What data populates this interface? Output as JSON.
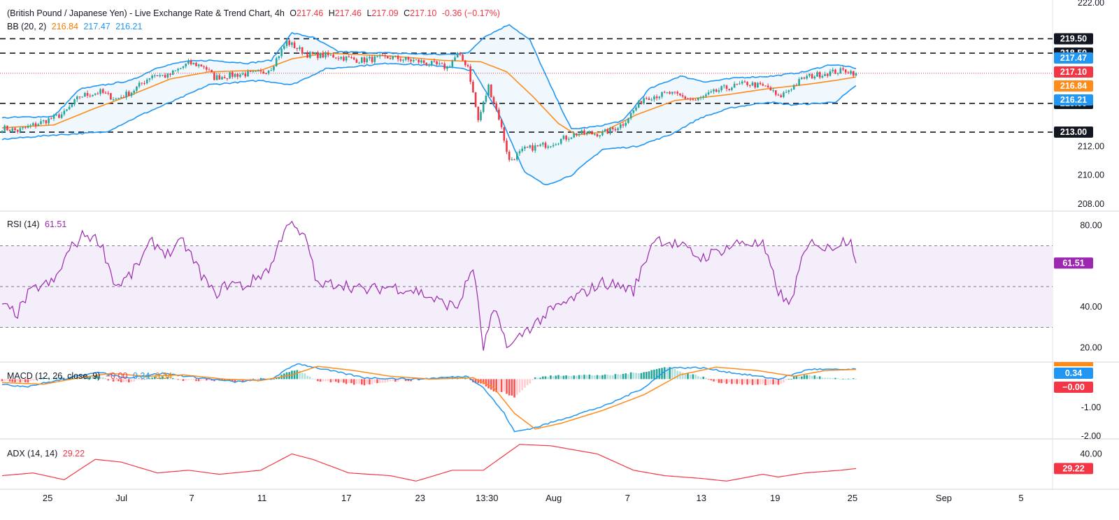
{
  "header": {
    "title": "(British Pound / Japanese Yen) - Live Exchange Rate & Trend Chart, 4h",
    "o_label": "O",
    "o_value": "217.46",
    "h_label": "H",
    "h_value": "217.46",
    "l_label": "L",
    "l_value": "217.09",
    "c_label": "C",
    "c_value": "217.10",
    "change": "-0.36 (−0.17%)"
  },
  "indicators": {
    "bb": {
      "label": "BB (20, 2)",
      "basis": "216.84",
      "upper": "217.47",
      "lower": "216.21"
    },
    "rsi": {
      "label": "RSI (14)",
      "value": "61.51"
    },
    "macd": {
      "label": "MACD (12, 26, close, 9)",
      "hist": "−0.00",
      "macd": "0.34",
      "signal": "0.34"
    },
    "adx": {
      "label": "ADX (14, 14)",
      "value": "29.22"
    }
  },
  "colors": {
    "up": "#26a69a",
    "down": "#f23645",
    "bb_basis": "#ff8c1a",
    "bb_band": "#2196f3",
    "bb_fill": "#e3f2fd",
    "rsi": "#9c27b0",
    "rsi_band": "#f3eefa",
    "macd": "#2196f3",
    "signal": "#ff8c1a",
    "adx": "#f23645",
    "level": "#131722"
  },
  "chart_data": [
    {
      "type": "candlestick",
      "name": "price",
      "y_ticks": [
        "222.00",
        "212.00",
        "210.00",
        "208.00"
      ],
      "ylim": [
        207.6,
        222.2
      ],
      "levels": [
        {
          "value": 219.5,
          "label": "219.50"
        },
        {
          "value": 218.5,
          "label": "218.50"
        },
        {
          "value": 215.0,
          "label": "215.00"
        },
        {
          "value": 213.0,
          "label": "213.00"
        }
      ],
      "price_labels": [
        {
          "value": 217.47,
          "label": "217.47",
          "kind": "bb_upper"
        },
        {
          "value": 217.1,
          "label": "217.10",
          "kind": "last"
        },
        {
          "value": 216.84,
          "label": "216.84",
          "kind": "bb_basis"
        },
        {
          "value": 216.21,
          "label": "216.21",
          "kind": "bb_lower"
        }
      ],
      "close_anchors": [
        [
          0,
          213.3
        ],
        [
          6,
          213.1
        ],
        [
          14,
          213.6
        ],
        [
          24,
          214.3
        ],
        [
          30,
          215.5
        ],
        [
          38,
          215.8
        ],
        [
          44,
          215.3
        ],
        [
          50,
          215.8
        ],
        [
          58,
          217.0
        ],
        [
          64,
          216.9
        ],
        [
          72,
          217.8
        ],
        [
          78,
          217.6
        ],
        [
          82,
          216.8
        ],
        [
          90,
          217.0
        ],
        [
          100,
          217.1
        ],
        [
          104,
          217.5
        ],
        [
          110,
          219.3
        ],
        [
          118,
          218.4
        ],
        [
          128,
          218.3
        ],
        [
          138,
          218.0
        ],
        [
          150,
          218.2
        ],
        [
          162,
          217.9
        ],
        [
          172,
          217.5
        ],
        [
          176,
          218.4
        ],
        [
          180,
          217.6
        ],
        [
          184,
          213.8
        ],
        [
          188,
          216.2
        ],
        [
          192,
          214.0
        ],
        [
          196,
          211.0
        ],
        [
          202,
          211.8
        ],
        [
          212,
          212.2
        ],
        [
          222,
          212.9
        ],
        [
          232,
          212.9
        ],
        [
          236,
          213.2
        ],
        [
          240,
          213.6
        ],
        [
          248,
          215.4
        ],
        [
          258,
          215.7
        ],
        [
          268,
          215.2
        ],
        [
          278,
          216.0
        ],
        [
          288,
          216.4
        ],
        [
          296,
          216.1
        ],
        [
          300,
          215.4
        ],
        [
          310,
          216.8
        ],
        [
          318,
          217.1
        ],
        [
          326,
          217.3
        ],
        [
          330,
          217.1
        ]
      ],
      "bb_upper_anchors": [
        [
          0,
          214.0
        ],
        [
          20,
          214.1
        ],
        [
          30,
          216.0
        ],
        [
          40,
          216.3
        ],
        [
          50,
          216.6
        ],
        [
          60,
          217.5
        ],
        [
          70,
          217.9
        ],
        [
          80,
          218.0
        ],
        [
          95,
          217.8
        ],
        [
          104,
          218.0
        ],
        [
          112,
          219.9
        ],
        [
          120,
          219.6
        ],
        [
          130,
          218.6
        ],
        [
          150,
          218.5
        ],
        [
          170,
          218.4
        ],
        [
          180,
          218.5
        ],
        [
          186,
          219.6
        ],
        [
          196,
          220.5
        ],
        [
          204,
          219.4
        ],
        [
          212,
          216.2
        ],
        [
          220,
          213.2
        ],
        [
          230,
          213.4
        ],
        [
          240,
          213.8
        ],
        [
          250,
          216.0
        ],
        [
          262,
          216.9
        ],
        [
          272,
          216.5
        ],
        [
          285,
          216.8
        ],
        [
          298,
          216.9
        ],
        [
          310,
          217.2
        ],
        [
          320,
          217.7
        ],
        [
          326,
          217.6
        ],
        [
          330,
          217.4
        ]
      ],
      "bb_basis_anchors": [
        [
          0,
          213.3
        ],
        [
          20,
          213.5
        ],
        [
          35,
          214.6
        ],
        [
          50,
          215.6
        ],
        [
          65,
          216.7
        ],
        [
          80,
          217.2
        ],
        [
          100,
          217.3
        ],
        [
          112,
          218.1
        ],
        [
          125,
          218.5
        ],
        [
          150,
          218.3
        ],
        [
          170,
          218.0
        ],
        [
          185,
          217.9
        ],
        [
          195,
          217.2
        ],
        [
          205,
          215.5
        ],
        [
          215,
          213.6
        ],
        [
          222,
          212.8
        ],
        [
          232,
          213.0
        ],
        [
          245,
          214.2
        ],
        [
          260,
          215.2
        ],
        [
          280,
          215.6
        ],
        [
          295,
          216.0
        ],
        [
          310,
          216.3
        ],
        [
          322,
          216.6
        ],
        [
          330,
          216.84
        ]
      ],
      "bb_lower_anchors": [
        [
          0,
          212.5
        ],
        [
          20,
          212.8
        ],
        [
          40,
          213.0
        ],
        [
          55,
          214.3
        ],
        [
          68,
          215.3
        ],
        [
          80,
          216.3
        ],
        [
          100,
          216.6
        ],
        [
          112,
          216.3
        ],
        [
          125,
          217.4
        ],
        [
          150,
          217.8
        ],
        [
          170,
          217.6
        ],
        [
          182,
          217.3
        ],
        [
          192,
          214.3
        ],
        [
          202,
          210.2
        ],
        [
          210,
          209.3
        ],
        [
          220,
          210.0
        ],
        [
          232,
          211.8
        ],
        [
          245,
          212.0
        ],
        [
          258,
          212.8
        ],
        [
          270,
          214.0
        ],
        [
          282,
          214.7
        ],
        [
          296,
          215.1
        ],
        [
          305,
          214.9
        ],
        [
          315,
          215.0
        ],
        [
          322,
          215.1
        ],
        [
          330,
          216.21
        ]
      ]
    },
    {
      "type": "line",
      "name": "rsi",
      "y_ticks": [
        "80.00",
        "40.00",
        "20.00"
      ],
      "ylim": [
        14,
        86
      ],
      "bands": [
        30,
        50,
        70
      ],
      "anchors": [
        [
          0,
          40
        ],
        [
          6,
          37
        ],
        [
          10,
          46
        ],
        [
          14,
          50
        ],
        [
          20,
          52
        ],
        [
          26,
          68
        ],
        [
          32,
          76
        ],
        [
          38,
          72
        ],
        [
          44,
          50
        ],
        [
          50,
          56
        ],
        [
          58,
          72
        ],
        [
          64,
          66
        ],
        [
          70,
          72
        ],
        [
          76,
          58
        ],
        [
          82,
          46
        ],
        [
          88,
          52
        ],
        [
          94,
          50
        ],
        [
          104,
          60
        ],
        [
          110,
          82
        ],
        [
          118,
          72
        ],
        [
          122,
          50
        ],
        [
          130,
          52
        ],
        [
          140,
          48
        ],
        [
          150,
          50
        ],
        [
          160,
          48
        ],
        [
          170,
          42
        ],
        [
          176,
          40
        ],
        [
          182,
          60
        ],
        [
          186,
          20
        ],
        [
          190,
          38
        ],
        [
          196,
          20
        ],
        [
          202,
          28
        ],
        [
          206,
          32
        ],
        [
          212,
          38
        ],
        [
          222,
          45
        ],
        [
          232,
          52
        ],
        [
          240,
          50
        ],
        [
          244,
          48
        ],
        [
          252,
          74
        ],
        [
          262,
          70
        ],
        [
          270,
          64
        ],
        [
          278,
          68
        ],
        [
          286,
          72
        ],
        [
          294,
          70
        ],
        [
          300,
          48
        ],
        [
          304,
          40
        ],
        [
          310,
          66
        ],
        [
          314,
          73
        ],
        [
          318,
          68
        ],
        [
          324,
          72
        ],
        [
          328,
          74
        ],
        [
          330,
          61.5
        ]
      ]
    },
    {
      "type": "line+histogram",
      "name": "macd",
      "y_ticks": [
        "-1.00",
        "-2.00"
      ],
      "ylim": [
        -2.05,
        0.55
      ],
      "macd_anchors": [
        [
          0,
          -0.2
        ],
        [
          10,
          -0.25
        ],
        [
          24,
          0.0
        ],
        [
          36,
          0.25
        ],
        [
          48,
          0.05
        ],
        [
          62,
          0.2
        ],
        [
          76,
          0.05
        ],
        [
          90,
          -0.1
        ],
        [
          104,
          0.0
        ],
        [
          114,
          0.55
        ],
        [
          124,
          0.35
        ],
        [
          140,
          0.05
        ],
        [
          160,
          0.0
        ],
        [
          180,
          0.1
        ],
        [
          186,
          -0.3
        ],
        [
          194,
          -1.2
        ],
        [
          198,
          -1.85
        ],
        [
          206,
          -1.7
        ],
        [
          220,
          -1.3
        ],
        [
          234,
          -0.9
        ],
        [
          248,
          -0.3
        ],
        [
          258,
          0.4
        ],
        [
          270,
          0.4
        ],
        [
          284,
          0.2
        ],
        [
          300,
          0.0
        ],
        [
          312,
          0.35
        ],
        [
          322,
          0.33
        ],
        [
          330,
          0.34
        ]
      ],
      "signal_anchors": [
        [
          0,
          -0.12
        ],
        [
          16,
          -0.18
        ],
        [
          30,
          0.05
        ],
        [
          42,
          0.2
        ],
        [
          56,
          0.1
        ],
        [
          70,
          0.15
        ],
        [
          86,
          0.0
        ],
        [
          100,
          -0.05
        ],
        [
          112,
          0.15
        ],
        [
          122,
          0.45
        ],
        [
          136,
          0.3
        ],
        [
          150,
          0.1
        ],
        [
          166,
          0.0
        ],
        [
          182,
          0.05
        ],
        [
          190,
          -0.3
        ],
        [
          198,
          -1.2
        ],
        [
          206,
          -1.75
        ],
        [
          216,
          -1.55
        ],
        [
          232,
          -1.1
        ],
        [
          248,
          -0.55
        ],
        [
          262,
          0.15
        ],
        [
          276,
          0.42
        ],
        [
          292,
          0.3
        ],
        [
          306,
          0.1
        ],
        [
          318,
          0.3
        ],
        [
          330,
          0.34
        ]
      ]
    },
    {
      "type": "line",
      "name": "adx",
      "y_ticks": [
        "40.00"
      ],
      "ylim": [
        14,
        50
      ],
      "anchors": [
        [
          0,
          24
        ],
        [
          12,
          26
        ],
        [
          24,
          21
        ],
        [
          36,
          36
        ],
        [
          46,
          34
        ],
        [
          60,
          26
        ],
        [
          72,
          28
        ],
        [
          84,
          25
        ],
        [
          100,
          28
        ],
        [
          112,
          40
        ],
        [
          120,
          36
        ],
        [
          134,
          26
        ],
        [
          150,
          24
        ],
        [
          160,
          20
        ],
        [
          174,
          28
        ],
        [
          186,
          28
        ],
        [
          200,
          47
        ],
        [
          212,
          46
        ],
        [
          230,
          40
        ],
        [
          244,
          28
        ],
        [
          256,
          24
        ],
        [
          270,
          22
        ],
        [
          280,
          20
        ],
        [
          294,
          25
        ],
        [
          300,
          23
        ],
        [
          310,
          26
        ],
        [
          324,
          28
        ],
        [
          330,
          29.22
        ]
      ]
    }
  ],
  "x_axis": {
    "ticks": [
      {
        "label": "25",
        "i": 6
      },
      {
        "label": "Jul",
        "i": 27
      },
      {
        "label": "7",
        "i": 47
      },
      {
        "label": "11",
        "i": 67
      },
      {
        "label": "17",
        "i": 91
      },
      {
        "label": "23",
        "i": 112
      },
      {
        "label": "13:30",
        "i": 131
      },
      {
        "label": "Aug",
        "i": 150
      },
      {
        "label": "7",
        "i": 171
      },
      {
        "label": "13",
        "i": 192
      },
      {
        "label": "19",
        "i": 213
      },
      {
        "label": "25",
        "i": 235
      },
      {
        "label": "Sep",
        "i": 261
      },
      {
        "label": "5",
        "i": 283
      }
    ]
  }
}
